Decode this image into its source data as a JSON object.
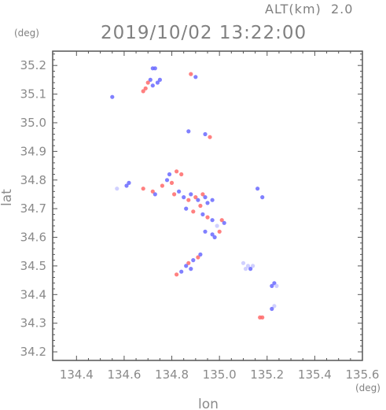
{
  "chart_data": {
    "type": "scatter",
    "title": "2019/10/02 13:22:00",
    "altitude_label": "ALT(km)  2.0",
    "xlabel": "lon",
    "ylabel": "lat",
    "x_unit": "(deg)",
    "y_unit": "(deg)",
    "xlim": [
      134.3,
      135.6
    ],
    "ylim": [
      34.17,
      35.25
    ],
    "xticks": [
      "134.4",
      "134.6",
      "134.8",
      "135.0",
      "135.2",
      "135.4",
      "135.6"
    ],
    "yticks": [
      "34.2",
      "34.3",
      "34.4",
      "34.5",
      "34.6",
      "34.7",
      "34.8",
      "34.9",
      "35.0",
      "35.1",
      "35.2"
    ],
    "grid": false,
    "colors": {
      "positive": "#ff6a6a",
      "negative": "#6a6aff",
      "neutral": "#c8c8ff",
      "frame": "#555555",
      "text": "#808080"
    },
    "series": [
      {
        "name": "",
        "points": [
          {
            "x": 134.72,
            "y": 35.19,
            "c": "negative"
          },
          {
            "x": 134.73,
            "y": 35.19,
            "c": "negative"
          },
          {
            "x": 134.71,
            "y": 35.15,
            "c": "negative"
          },
          {
            "x": 134.7,
            "y": 35.14,
            "c": "positive"
          },
          {
            "x": 134.72,
            "y": 35.13,
            "c": "negative"
          },
          {
            "x": 134.69,
            "y": 35.12,
            "c": "positive"
          },
          {
            "x": 134.74,
            "y": 35.14,
            "c": "negative"
          },
          {
            "x": 134.68,
            "y": 35.11,
            "c": "positive"
          },
          {
            "x": 134.75,
            "y": 35.15,
            "c": "negative"
          },
          {
            "x": 134.55,
            "y": 35.09,
            "c": "negative"
          },
          {
            "x": 134.88,
            "y": 35.17,
            "c": "positive"
          },
          {
            "x": 134.9,
            "y": 35.16,
            "c": "negative"
          },
          {
            "x": 134.87,
            "y": 34.97,
            "c": "negative"
          },
          {
            "x": 134.94,
            "y": 34.96,
            "c": "negative"
          },
          {
            "x": 134.96,
            "y": 34.95,
            "c": "positive"
          },
          {
            "x": 134.82,
            "y": 34.83,
            "c": "positive"
          },
          {
            "x": 134.84,
            "y": 34.82,
            "c": "positive"
          },
          {
            "x": 134.79,
            "y": 34.82,
            "c": "negative"
          },
          {
            "x": 134.78,
            "y": 34.8,
            "c": "negative"
          },
          {
            "x": 134.8,
            "y": 34.79,
            "c": "positive"
          },
          {
            "x": 134.76,
            "y": 34.78,
            "c": "positive"
          },
          {
            "x": 134.62,
            "y": 34.79,
            "c": "negative"
          },
          {
            "x": 134.61,
            "y": 34.78,
            "c": "negative"
          },
          {
            "x": 134.57,
            "y": 34.77,
            "c": "neutral"
          },
          {
            "x": 134.68,
            "y": 34.77,
            "c": "positive"
          },
          {
            "x": 134.72,
            "y": 34.76,
            "c": "positive"
          },
          {
            "x": 134.73,
            "y": 34.75,
            "c": "negative"
          },
          {
            "x": 134.81,
            "y": 34.75,
            "c": "positive"
          },
          {
            "x": 134.83,
            "y": 34.76,
            "c": "negative"
          },
          {
            "x": 134.85,
            "y": 34.74,
            "c": "negative"
          },
          {
            "x": 134.87,
            "y": 34.73,
            "c": "positive"
          },
          {
            "x": 134.88,
            "y": 34.75,
            "c": "negative"
          },
          {
            "x": 134.9,
            "y": 34.74,
            "c": "positive"
          },
          {
            "x": 134.91,
            "y": 34.73,
            "c": "negative"
          },
          {
            "x": 134.93,
            "y": 34.75,
            "c": "positive"
          },
          {
            "x": 134.94,
            "y": 34.74,
            "c": "negative"
          },
          {
            "x": 134.92,
            "y": 34.71,
            "c": "positive"
          },
          {
            "x": 134.95,
            "y": 34.72,
            "c": "negative"
          },
          {
            "x": 134.97,
            "y": 34.73,
            "c": "negative"
          },
          {
            "x": 134.86,
            "y": 34.7,
            "c": "negative"
          },
          {
            "x": 134.89,
            "y": 34.69,
            "c": "positive"
          },
          {
            "x": 134.93,
            "y": 34.68,
            "c": "negative"
          },
          {
            "x": 134.95,
            "y": 34.67,
            "c": "positive"
          },
          {
            "x": 134.97,
            "y": 34.66,
            "c": "negative"
          },
          {
            "x": 135.01,
            "y": 34.66,
            "c": "positive"
          },
          {
            "x": 135.02,
            "y": 34.65,
            "c": "negative"
          },
          {
            "x": 134.99,
            "y": 34.64,
            "c": "neutral"
          },
          {
            "x": 134.94,
            "y": 34.62,
            "c": "negative"
          },
          {
            "x": 134.97,
            "y": 34.61,
            "c": "negative"
          },
          {
            "x": 135.0,
            "y": 34.62,
            "c": "positive"
          },
          {
            "x": 134.98,
            "y": 34.6,
            "c": "negative"
          },
          {
            "x": 135.1,
            "y": 34.51,
            "c": "neutral"
          },
          {
            "x": 135.12,
            "y": 34.5,
            "c": "neutral"
          },
          {
            "x": 135.14,
            "y": 34.5,
            "c": "neutral"
          },
          {
            "x": 135.11,
            "y": 34.49,
            "c": "neutral"
          },
          {
            "x": 135.13,
            "y": 34.49,
            "c": "negative"
          },
          {
            "x": 134.91,
            "y": 34.53,
            "c": "positive"
          },
          {
            "x": 134.92,
            "y": 34.54,
            "c": "negative"
          },
          {
            "x": 134.89,
            "y": 34.52,
            "c": "negative"
          },
          {
            "x": 134.87,
            "y": 34.51,
            "c": "positive"
          },
          {
            "x": 134.86,
            "y": 34.5,
            "c": "negative"
          },
          {
            "x": 134.88,
            "y": 34.49,
            "c": "negative"
          },
          {
            "x": 134.84,
            "y": 34.48,
            "c": "negative"
          },
          {
            "x": 134.82,
            "y": 34.47,
            "c": "positive"
          },
          {
            "x": 135.23,
            "y": 34.44,
            "c": "negative"
          },
          {
            "x": 135.22,
            "y": 34.43,
            "c": "negative"
          },
          {
            "x": 135.24,
            "y": 34.43,
            "c": "neutral"
          },
          {
            "x": 135.23,
            "y": 34.36,
            "c": "neutral"
          },
          {
            "x": 135.22,
            "y": 34.35,
            "c": "negative"
          },
          {
            "x": 135.17,
            "y": 34.32,
            "c": "positive"
          },
          {
            "x": 135.18,
            "y": 34.32,
            "c": "positive"
          },
          {
            "x": 135.16,
            "y": 34.77,
            "c": "negative"
          },
          {
            "x": 135.18,
            "y": 34.74,
            "c": "negative"
          }
        ]
      }
    ]
  }
}
